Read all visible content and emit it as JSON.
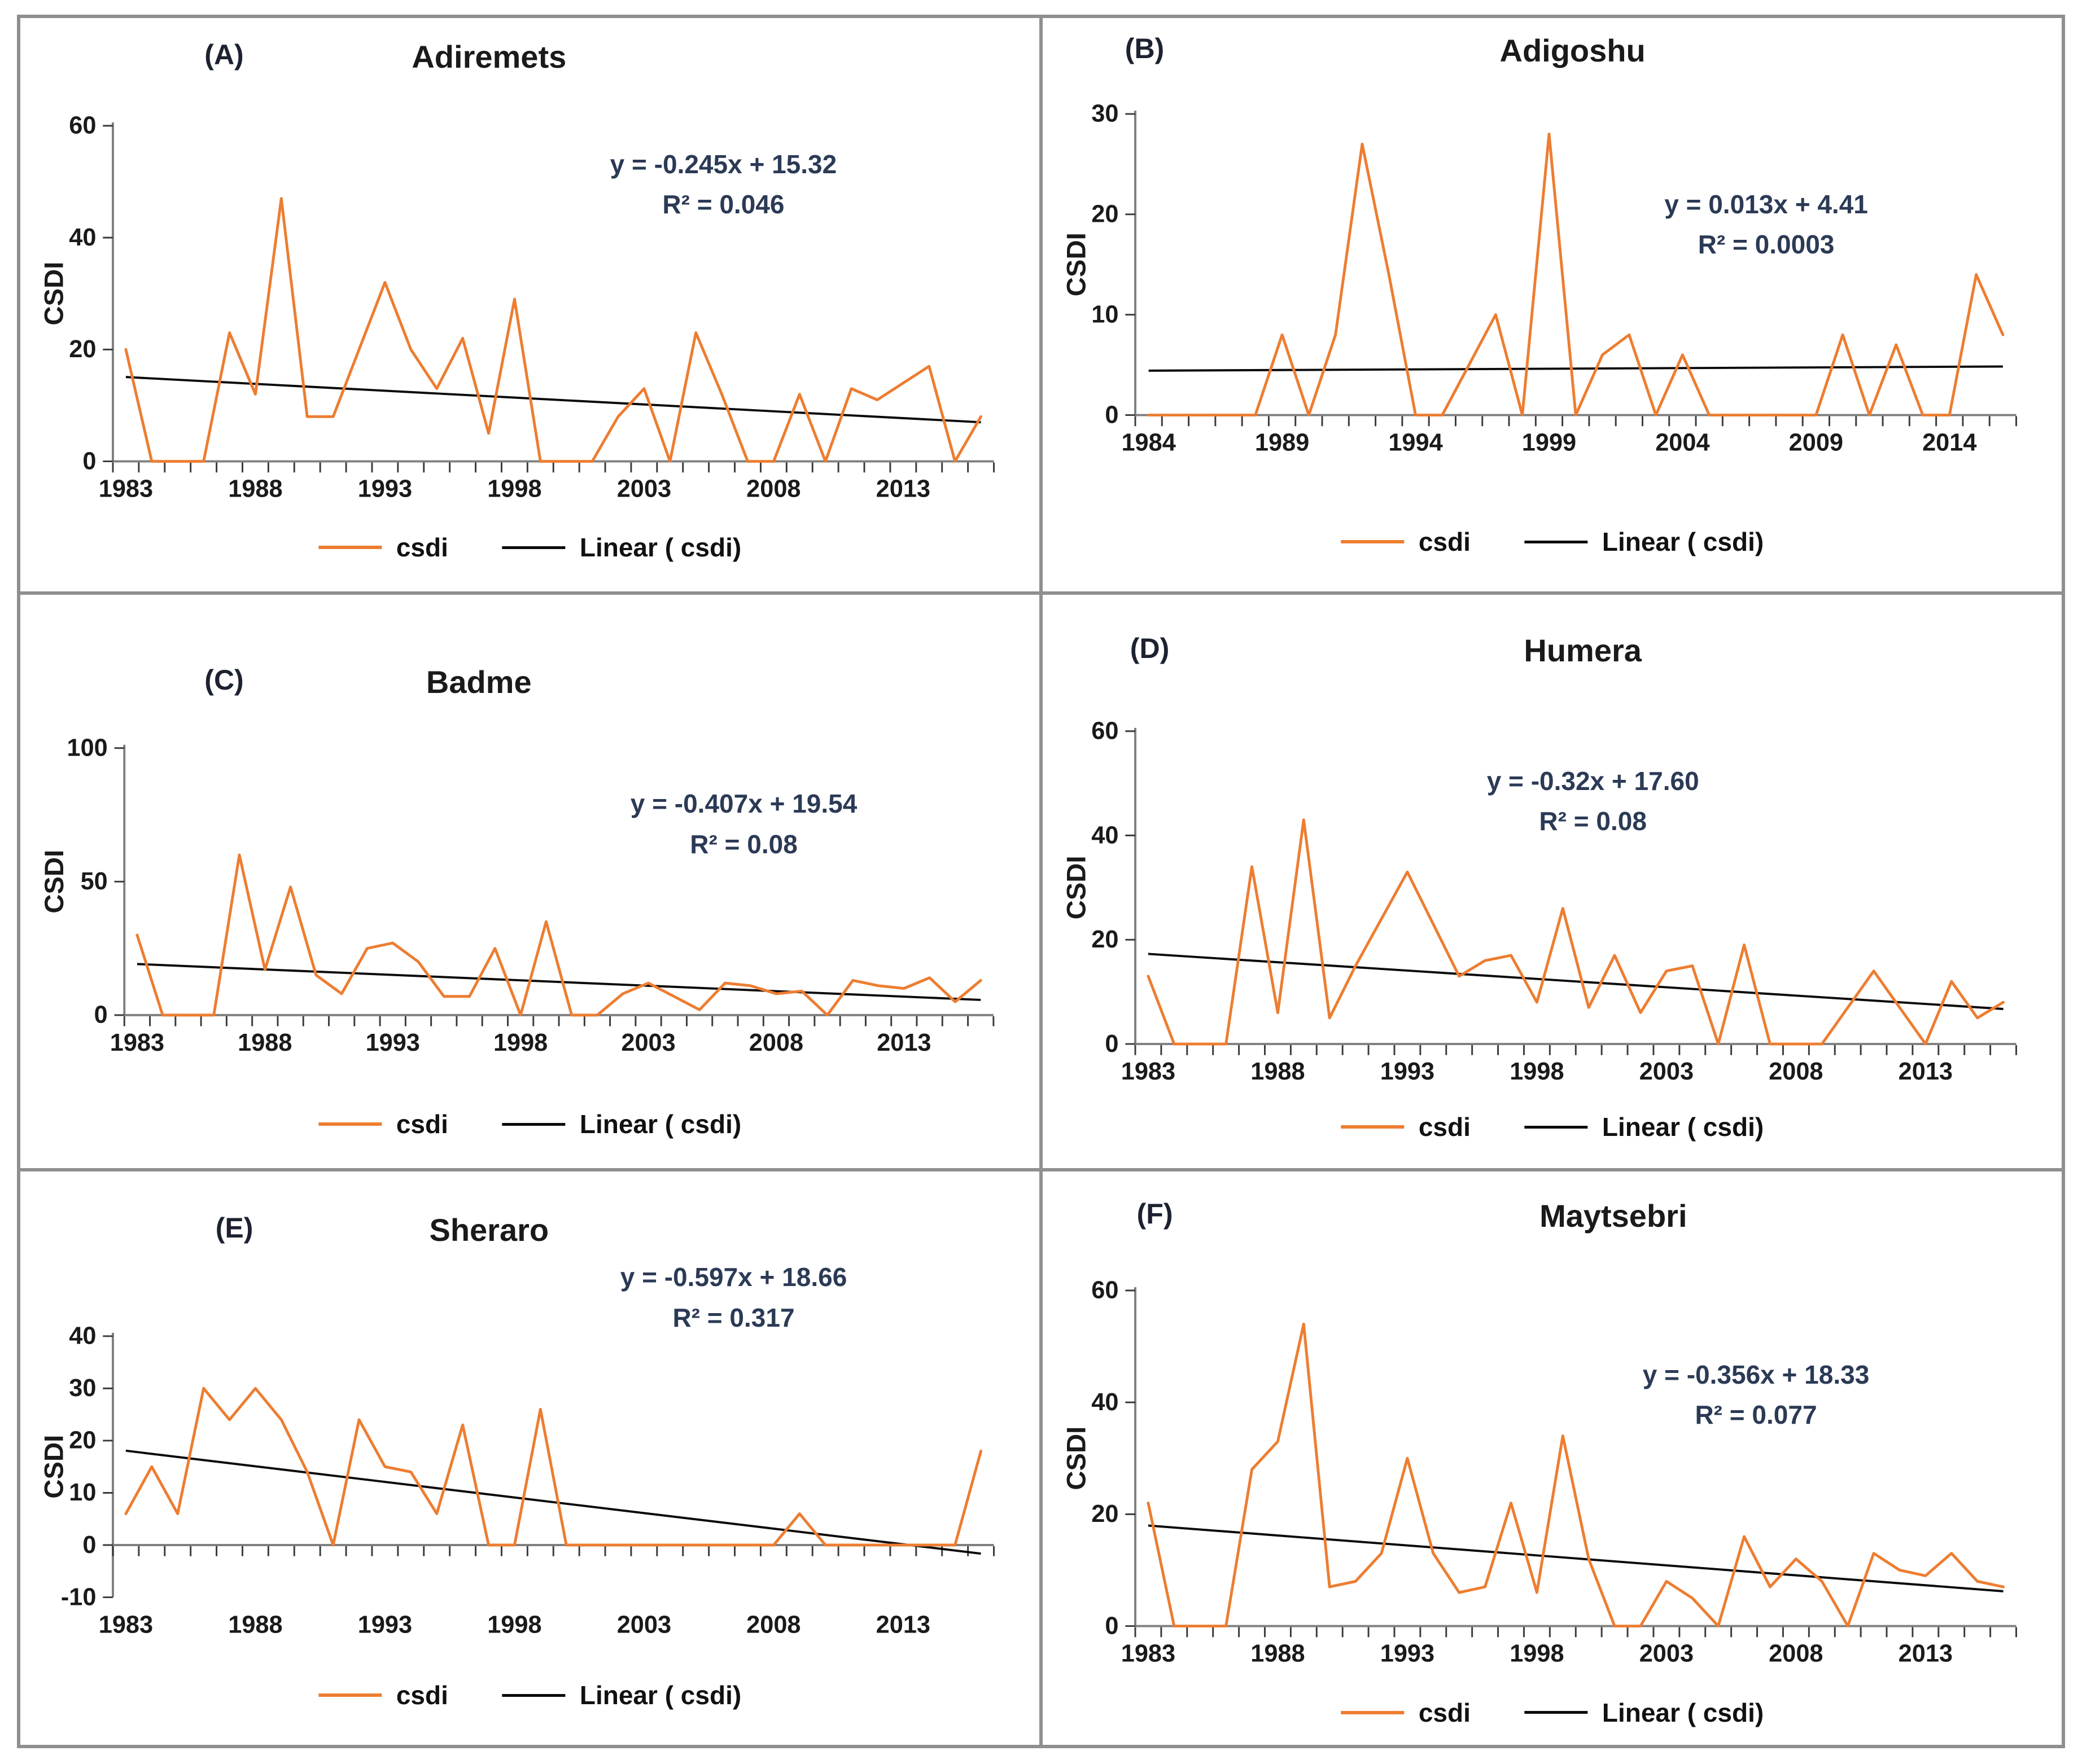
{
  "legend": {
    "series_label": "csdi",
    "trend_label": "Linear ( csdi)"
  },
  "colors": {
    "series": "#ED7D31",
    "trend": "#0a0a0a",
    "axis": "#7f7f7f",
    "tick": "#3a3a3a",
    "text": "#1a1a1a",
    "equation_text": "#2b3a55",
    "frame": "#8f8f8f"
  },
  "chart_data": [
    {
      "type": "line",
      "panel_label": "(A)",
      "title": "Adiremets",
      "ylabel": "CSDI",
      "equation": "y = -0.245x + 15.32",
      "r2_label": "R² = 0.046",
      "trend": {
        "slope": -0.245,
        "intercept": 15.32
      },
      "start_year": 1983,
      "xtick_labels": [
        1983,
        1988,
        1993,
        1998,
        2003,
        2008,
        2013
      ],
      "ylim": [
        0,
        60
      ],
      "yticks": [
        0,
        20,
        40,
        60
      ],
      "grid": false,
      "legend_position": "bottom",
      "values": [
        20,
        0,
        0,
        0,
        23,
        12,
        47,
        8,
        8,
        20,
        32,
        20,
        13,
        22,
        5,
        29,
        0,
        0,
        0,
        8,
        13,
        0,
        23,
        12,
        0,
        0,
        12,
        0,
        13,
        11,
        14,
        17,
        0,
        8
      ]
    },
    {
      "type": "line",
      "panel_label": "(B)",
      "title": "Adigoshu",
      "ylabel": "CSDI",
      "equation": "y = 0.013x + 4.41",
      "r2_label": "R² = 0.0003",
      "trend": {
        "slope": 0.013,
        "intercept": 4.41
      },
      "start_year": 1984,
      "xtick_labels": [
        1984,
        1989,
        1994,
        1999,
        2004,
        2009,
        2014
      ],
      "ylim": [
        0,
        30
      ],
      "yticks": [
        0,
        10,
        20,
        30
      ],
      "grid": false,
      "legend_position": "bottom",
      "values": [
        0,
        0,
        0,
        0,
        0,
        8,
        0,
        8,
        27,
        14,
        0,
        0,
        5,
        10,
        0,
        28,
        0,
        6,
        8,
        0,
        6,
        0,
        0,
        0,
        0,
        0,
        8,
        0,
        7,
        0,
        0,
        14,
        8
      ]
    },
    {
      "type": "line",
      "panel_label": "(C)",
      "title": "Badme",
      "ylabel": "CSDI",
      "equation": "y = -0.407x + 19.54",
      "r2_label": "R² = 0.08",
      "trend": {
        "slope": -0.407,
        "intercept": 19.54
      },
      "start_year": 1983,
      "xtick_labels": [
        1983,
        1988,
        1993,
        1998,
        2003,
        2008,
        2013
      ],
      "ylim": [
        0,
        100
      ],
      "yticks": [
        0,
        50,
        100
      ],
      "grid": false,
      "legend_position": "bottom",
      "values": [
        30,
        0,
        0,
        0,
        60,
        17,
        48,
        15,
        8,
        25,
        27,
        20,
        7,
        7,
        25,
        0,
        35,
        0,
        0,
        8,
        12,
        7,
        2,
        12,
        11,
        8,
        9,
        0,
        13,
        11,
        10,
        14,
        5,
        13
      ]
    },
    {
      "type": "line",
      "panel_label": "(D)",
      "title": "Humera",
      "ylabel": "CSDI",
      "equation": "y = -0.32x + 17.60",
      "r2_label": "R² = 0.08",
      "trend": {
        "slope": -0.32,
        "intercept": 17.6
      },
      "start_year": 1983,
      "xtick_labels": [
        1983,
        1988,
        1993,
        1998,
        2003,
        2008,
        2013
      ],
      "ylim": [
        0,
        60
      ],
      "yticks": [
        0,
        20,
        40,
        60
      ],
      "grid": false,
      "legend_position": "bottom",
      "values": [
        13,
        0,
        0,
        0,
        34,
        6,
        43,
        5,
        15,
        24,
        33,
        23,
        13,
        16,
        17,
        8,
        26,
        7,
        17,
        6,
        14,
        15,
        0,
        19,
        0,
        0,
        0,
        7,
        14,
        7,
        0,
        12,
        5,
        8
      ]
    },
    {
      "type": "line",
      "panel_label": "(E)",
      "title": "Sheraro",
      "ylabel": "CSDI",
      "equation": "y = -0.597x + 18.66",
      "r2_label": "R² = 0.317",
      "trend": {
        "slope": -0.597,
        "intercept": 18.66
      },
      "start_year": 1983,
      "xtick_labels": [
        1983,
        1988,
        1993,
        1998,
        2003,
        2008,
        2013
      ],
      "ylim": [
        -10,
        40
      ],
      "yticks": [
        -10,
        0,
        10,
        20,
        30,
        40
      ],
      "grid": false,
      "legend_position": "bottom",
      "values": [
        6,
        15,
        6,
        30,
        24,
        30,
        24,
        14,
        0,
        24,
        15,
        14,
        6,
        23,
        0,
        0,
        26,
        0,
        0,
        0,
        0,
        0,
        0,
        0,
        0,
        0,
        6,
        0,
        0,
        0,
        0,
        0,
        0,
        18
      ]
    },
    {
      "type": "line",
      "panel_label": "(F)",
      "title": "Maytsebri",
      "ylabel": "CSDI",
      "equation": "y = -0.356x + 18.33",
      "r2_label": "R² = 0.077",
      "trend": {
        "slope": -0.356,
        "intercept": 18.33
      },
      "start_year": 1983,
      "xtick_labels": [
        1983,
        1988,
        1993,
        1998,
        2003,
        2008,
        2013
      ],
      "ylim": [
        0,
        60
      ],
      "yticks": [
        0,
        20,
        40,
        60
      ],
      "grid": false,
      "legend_position": "bottom",
      "values": [
        22,
        0,
        0,
        0,
        28,
        33,
        54,
        7,
        8,
        13,
        30,
        13,
        6,
        7,
        22,
        6,
        34,
        12,
        0,
        0,
        8,
        5,
        0,
        16,
        7,
        12,
        8,
        0,
        13,
        10,
        9,
        13,
        8,
        7
      ]
    }
  ]
}
